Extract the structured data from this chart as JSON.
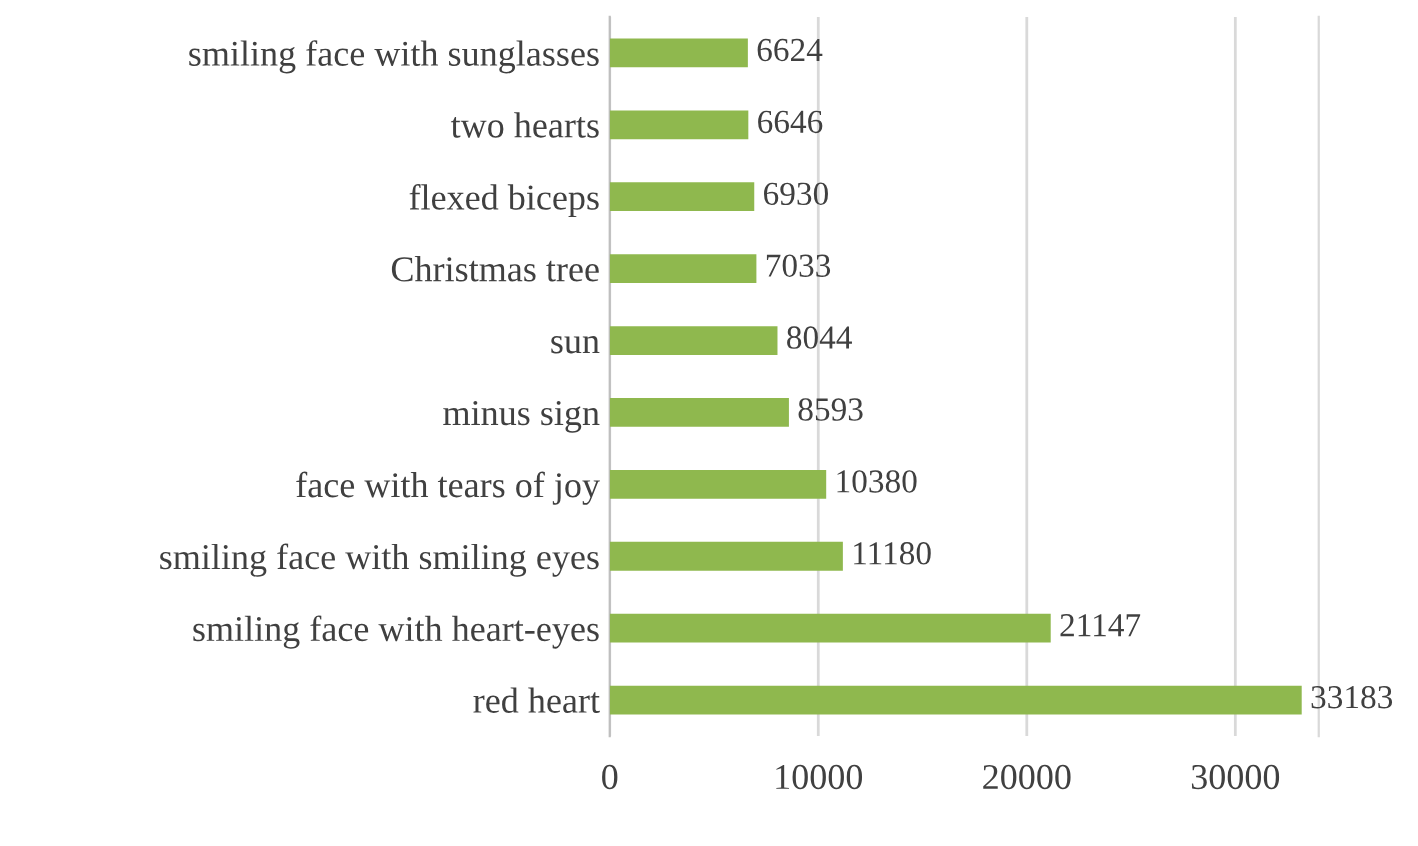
{
  "chart_data": {
    "type": "bar",
    "orientation": "horizontal",
    "categories": [
      "smiling face with sunglasses",
      "two hearts",
      "flexed biceps",
      "Christmas tree",
      "sun",
      "minus sign",
      "face with tears of joy",
      "smiling face with smiling eyes",
      "smiling face with heart-eyes",
      "red heart"
    ],
    "values": [
      6624,
      6646,
      6930,
      7033,
      8044,
      8593,
      10380,
      11180,
      21147,
      33183
    ],
    "color": "#8fb84e",
    "xlim": [
      0,
      34000
    ],
    "xticks": [
      0,
      10000,
      20000,
      30000
    ],
    "grid": "x",
    "data_labels": true
  }
}
